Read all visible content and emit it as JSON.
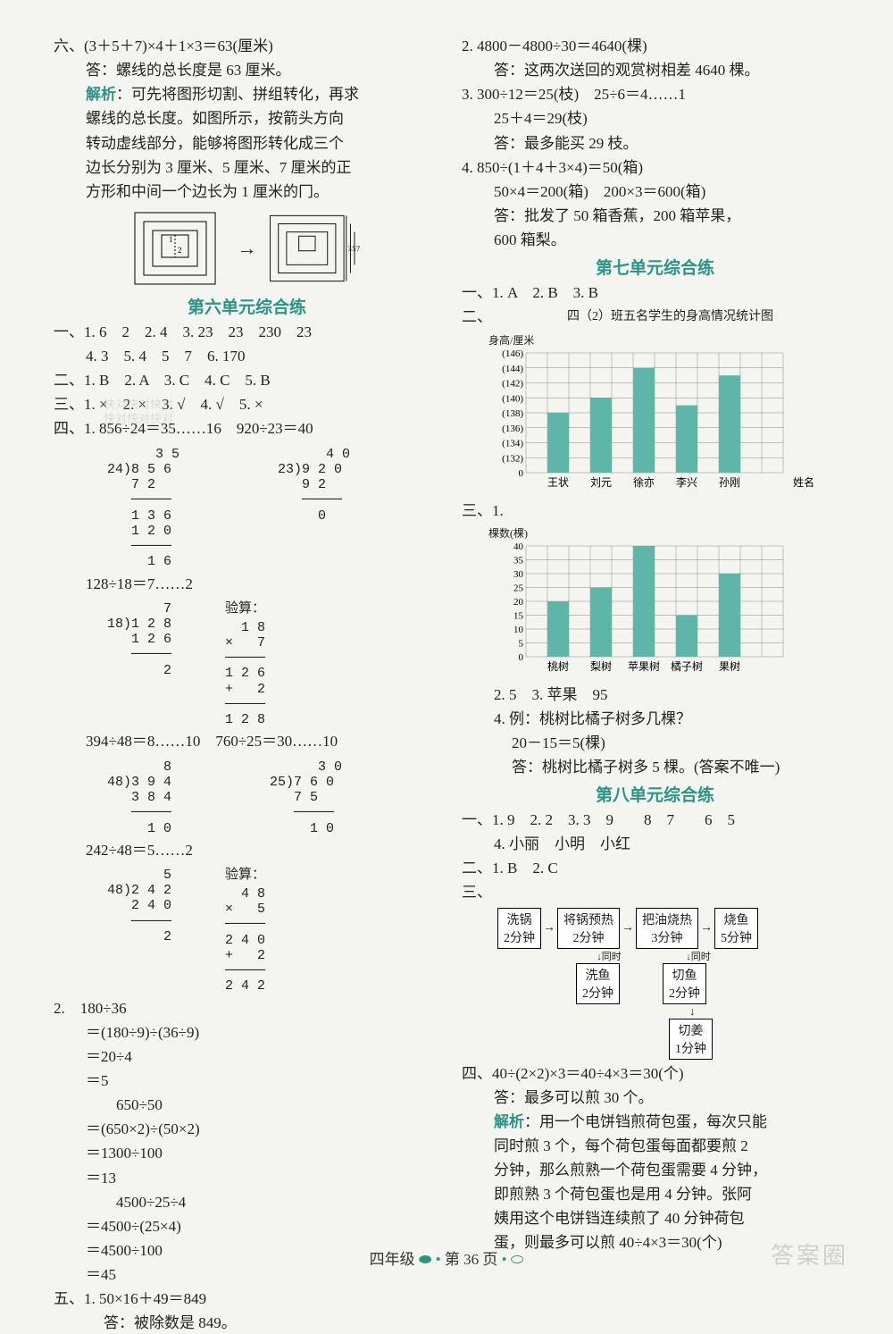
{
  "left": {
    "l1": "六、(3＋5＋7)×4＋1×3＝63(厘米)",
    "l2": "答：螺线的总长度是 63 厘米。",
    "l3a": "解析",
    "l3": "：可先将图形切割、拼组转化，再求",
    "l4": "螺线的总长度。如图所示，按箭头方向",
    "l5": "转动虚线部分，能够将图形转化成三个",
    "l6": "边长分别为 3 厘米、5 厘米、7 厘米的正",
    "l7": "方形和中间一个边长为 1 厘米的冂。",
    "unit6": "第六单元综合练",
    "u6_1": "一、1. 6　2　2. 4　3. 23　23　230　23",
    "u6_1b": "4. 3　5. 4　5　7　6. 170",
    "u6_2": "二、1. B　2. A　3. C　4. C　5. B",
    "u6_3": "三、1. ×　2. ×　3. √　4. √　5. ×",
    "u6_4": "四、1. 856÷24＝35……16　920÷23＝40",
    "u6_4b": "128÷18＝7……2",
    "verify": "验算：",
    "u6_4c": "394÷48＝8……10　760÷25＝30……10",
    "u6_4d": "242÷48＝5……2",
    "u6_q2a": "2.　180÷36",
    "u6_q2b": "＝(180÷9)÷(36÷9)",
    "u6_q2c": "＝20÷4",
    "u6_q2d": "＝5",
    "u6_q2e": "　　650÷50",
    "u6_q2f": "＝(650×2)÷(50×2)",
    "u6_q2g": "＝1300÷100",
    "u6_q2h": "＝13",
    "u6_q2i": "　　4500÷25÷4",
    "u6_q2j": "＝4500÷(25×4)",
    "u6_q2k": "＝4500÷100",
    "u6_q2l": "＝45",
    "u6_5a": "五、1. 50×16＋49＝849",
    "u6_5b": "答：被除数是 849。",
    "watermark": "快对快对快对\n快对快对快对",
    "ld1": "      3 5\n24)8 5 6\n   7 2\n   ─────\n   1 3 6\n   1 2 0\n   ─────\n     1 6",
    "ld2": "      4 0\n23)9 2 0\n   9 2\n   ─────\n     0",
    "ld3": "       7\n18)1 2 8\n   1 2 6\n   ─────\n       2",
    "ld3v": "  1 8\n×   7\n─────\n1 2 6\n+   2\n─────\n1 2 8",
    "ld4": "       8\n48)3 9 4\n   3 8 4\n   ─────\n     1 0",
    "ld5": "      3 0\n25)7 6 0\n   7 5\n   ─────\n     1 0",
    "ld6": "       5\n48)2 4 2\n   2 4 0\n   ─────\n       2",
    "ld6v": "  4 8\n×   5\n─────\n2 4 0\n+   2\n─────\n2 4 2"
  },
  "right": {
    "r1": "2. 4800－4800÷30＝4640(棵)",
    "r2": "答：这两次送回的观赏树相差 4640 棵。",
    "r3": "3. 300÷12＝25(枝)　25÷6＝4……1",
    "r4": "25＋4＝29(枝)",
    "r5": "答：最多能买 29 枝。",
    "r6": "4. 850÷(1＋4＋3×4)＝50(箱)",
    "r7": "50×4＝200(箱)　200×3＝600(箱)",
    "r8": "答：批发了 50 箱香蕉，200 箱苹果，",
    "r9": "600 箱梨。",
    "unit7": "第七单元综合练",
    "u7_1": "一、1. A　2. B　3. B",
    "u7_2": "二、",
    "chart1_title": "四（2）班五名学生的身高情况统计图",
    "chart1_ylabel": "身高/厘米",
    "chart1": {
      "yticks": [
        "(146)",
        "(144)",
        "(142)",
        "(140)",
        "(138)",
        "(136)",
        "(134)",
        "(132)",
        "0"
      ],
      "ybottom": 130,
      "ytop": 146,
      "ystep": 2,
      "categories": [
        "王状",
        "刘元",
        "徐亦",
        "李兴",
        "孙刚"
      ],
      "xlabel_end": "姓名",
      "values": [
        138,
        140,
        144,
        139,
        143
      ],
      "bar_color": "#5fb5a8",
      "grid_color": "#888888"
    },
    "u7_3": "三、1.",
    "chart2_ylabel": "棵数(棵)",
    "chart2": {
      "yticks": [
        "40",
        "35",
        "30",
        "25",
        "20",
        "15",
        "10",
        "5",
        "0"
      ],
      "ytop": 40,
      "ystep": 5,
      "categories": [
        "桃树",
        "梨树",
        "苹果树",
        "橘子树",
        "果树"
      ],
      "values": [
        20,
        25,
        40,
        15,
        30
      ],
      "bar_color": "#5fb5a8",
      "grid_color": "#888888"
    },
    "u7_3b": "2. 5　3. 苹果　95",
    "u7_3c": "4. 例：桃树比橘子树多几棵？",
    "u7_3d": "20－15＝5(棵)",
    "u7_3e": "答：桃树比橘子树多 5 棵。(答案不唯一)",
    "unit8": "第八单元综合练",
    "u8_1": "一、1. 9　2. 2　3. 3　9　　8　7　　6　5",
    "u8_1b": "4. 小丽　小明　小红",
    "u8_2": "二、1. B　2. C",
    "u8_3": "三、",
    "flow": {
      "b1a": "洗锅",
      "b1b": "2分钟",
      "b2a": "将锅预热",
      "b2b": "2分钟",
      "b3a": "把油烧热",
      "b3b": "3分钟",
      "b4a": "烧鱼",
      "b4b": "5分钟",
      "b5a": "洗鱼",
      "b5b": "2分钟",
      "b6a": "切鱼",
      "b6b": "2分钟",
      "b7a": "切姜",
      "b7b": "1分钟",
      "tong": "同时"
    },
    "u8_4": "四、40÷(2×2)×3＝40÷4×3＝30(个)",
    "u8_4b": "答：最多可以煎 30 个。",
    "u8_4c_a": "解析",
    "u8_4c": "：用一个电饼铛煎荷包蛋，每次只能",
    "u8_4d": "同时煎 3 个，每个荷包蛋每面都要煎 2",
    "u8_4e": "分钟，那么煎熟一个荷包蛋需要 4 分钟，",
    "u8_4f": "即煎熟 3 个荷包蛋也是用 4 分钟。张阿",
    "u8_4g": "姨用这个电饼铛连续煎了 40 分钟荷包",
    "u8_4h": "蛋，则最多可以煎 40÷4×3＝30(个)"
  },
  "footer": {
    "grade": "四年级",
    "page": "第 36 页"
  },
  "wm_br": "答案圈"
}
